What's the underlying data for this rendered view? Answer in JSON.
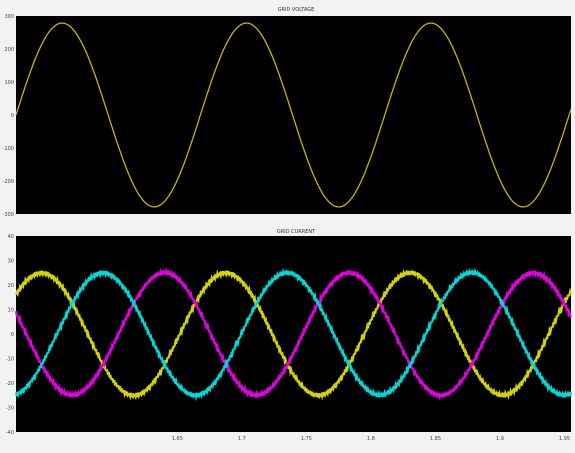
{
  "chart_data": [
    {
      "type": "line",
      "title": "GRID VOLTAGE",
      "xlabel": "",
      "ylabel": "",
      "xlim": [
        1.525,
        1.955
      ],
      "ylim": [
        -350,
        350
      ],
      "y_ticks": [
        "300",
        "200",
        "100",
        "0",
        "-100",
        "-200",
        "-300"
      ],
      "grid": false,
      "background": "#000000",
      "frequency_hz": 7,
      "series": [
        {
          "color": "#c8b400",
          "amplitude": 325,
          "phase_deg": 0
        }
      ]
    },
    {
      "type": "line",
      "title": "GRID CURRENT",
      "xlabel": "",
      "ylabel": "",
      "xlim": [
        1.525,
        1.955
      ],
      "ylim": [
        -40,
        40
      ],
      "x_ticks": [
        "1.65",
        "1.7",
        "1.75",
        "1.8",
        "1.85",
        "1.9",
        "1.95"
      ],
      "y_ticks": [
        "40",
        "30",
        "20",
        "10",
        "0",
        "-10",
        "-20",
        "-30",
        "-40"
      ],
      "grid": false,
      "background": "#000000",
      "frequency_hz": 7,
      "series": [
        {
          "color": "#d4d400",
          "amplitude": 25,
          "phase_deg": 40
        },
        {
          "color": "#e000e0",
          "amplitude": 25,
          "phase_deg": 160
        },
        {
          "color": "#00d8d8",
          "amplitude": 25,
          "phase_deg": 280
        }
      ]
    }
  ]
}
